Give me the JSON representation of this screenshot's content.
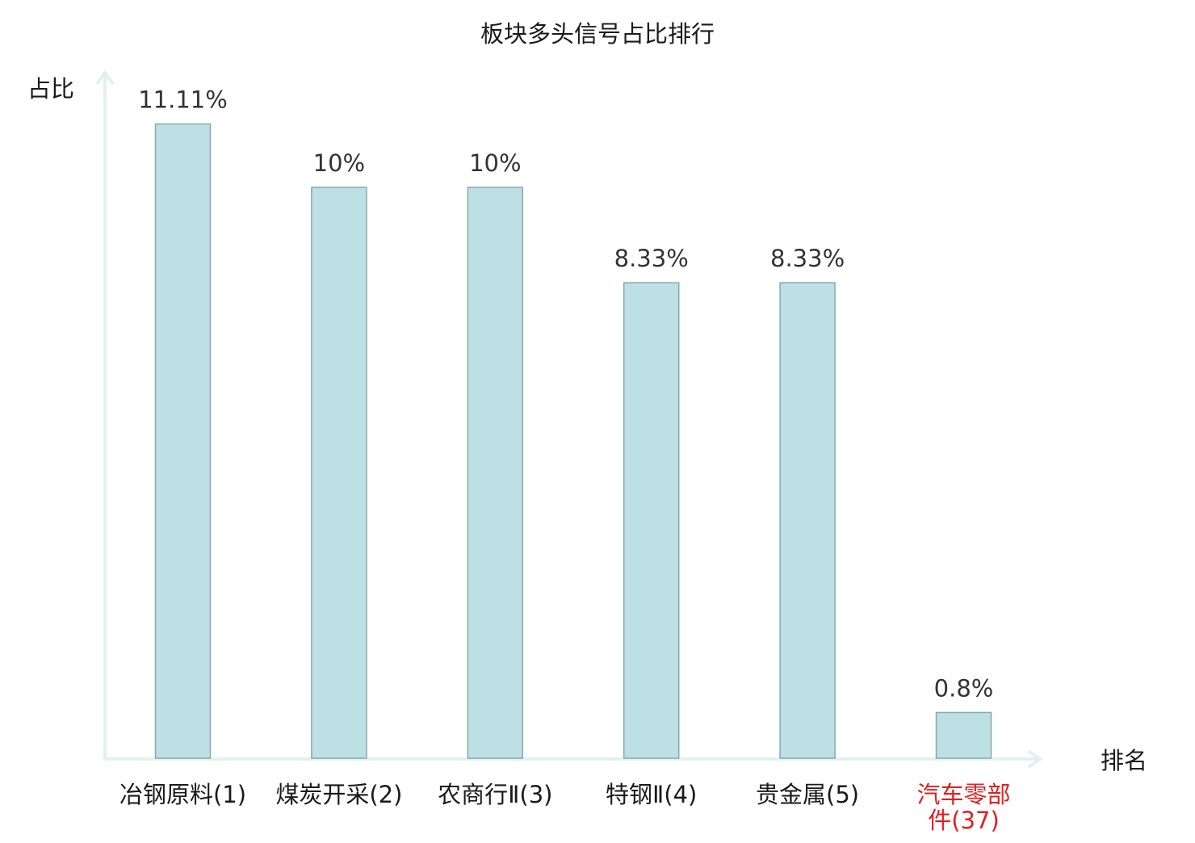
{
  "chart_data": {
    "type": "bar",
    "title": "板块多头信号占比排行",
    "ylabel": "占比",
    "xlabel": "排名",
    "categories": [
      [
        "冶钢原料(1)"
      ],
      [
        "煤炭开采(2)"
      ],
      [
        "农商行Ⅱ(3)"
      ],
      [
        "特钢Ⅱ(4)"
      ],
      [
        "贵金属(5)"
      ],
      [
        "汽车零部",
        "件(37)"
      ]
    ],
    "values": [
      11.11,
      10,
      10,
      8.33,
      8.33,
      0.8
    ],
    "value_labels": [
      "11.11%",
      "10%",
      "10%",
      "8.33%",
      "8.33%",
      "0.8%"
    ],
    "highlight_index": 5,
    "colors": {
      "bar_fill": "#bce0e3",
      "bar_stroke": "#8aa8ab",
      "axis": "#e0f2f0",
      "text": "#1a1a1a",
      "value_text": "#333333",
      "highlight_text": "#e02020"
    }
  }
}
